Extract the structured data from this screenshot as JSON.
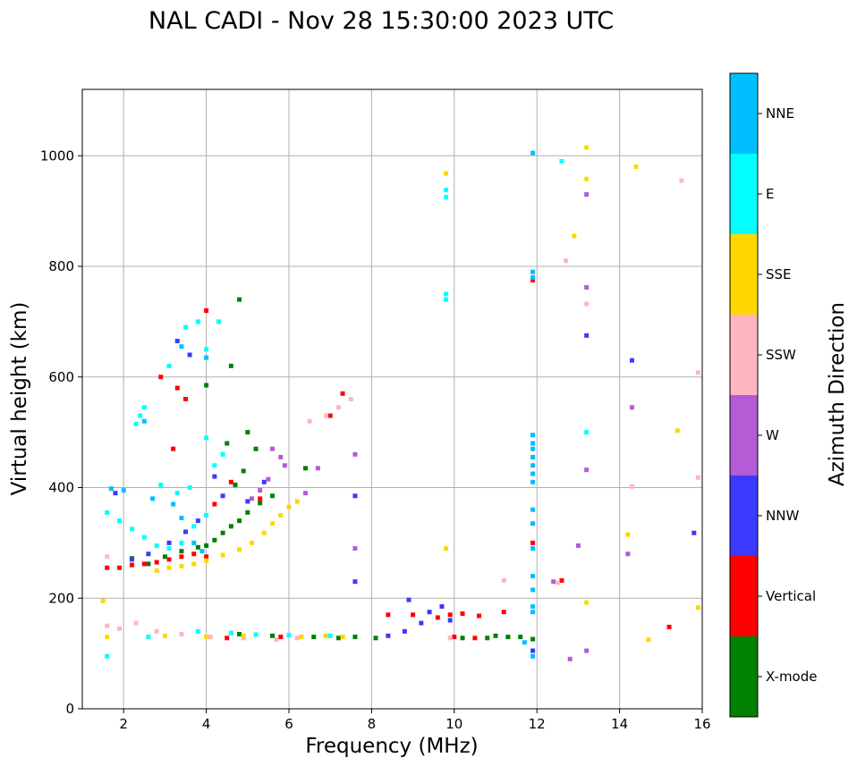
{
  "chart_data": {
    "type": "scatter",
    "title": "NAL CADI - Nov 28 15:30:00 2023 UTC",
    "xlabel": "Frequency (MHz)",
    "ylabel": "Virtual height (km)",
    "xlim": [
      1,
      16
    ],
    "ylim": [
      0,
      1120
    ],
    "xticks": [
      2,
      4,
      6,
      8,
      10,
      12,
      14,
      16
    ],
    "yticks": [
      0,
      200,
      400,
      600,
      800,
      1000
    ],
    "grid": true,
    "colorbar": {
      "label": "Azimuth Direction",
      "categories": [
        {
          "name": "X-mode",
          "color": "#008000"
        },
        {
          "name": "Vertical",
          "color": "#ff0000"
        },
        {
          "name": "NNW",
          "color": "#3a3aff"
        },
        {
          "name": "W",
          "color": "#b45bd6"
        },
        {
          "name": "SSW",
          "color": "#ffb6c1"
        },
        {
          "name": "SSE",
          "color": "#ffd700"
        },
        {
          "name": "E",
          "color": "#00ffff"
        },
        {
          "name": "NNE",
          "color": "#00bfff"
        }
      ]
    },
    "series": [
      {
        "name": "X-mode",
        "points": [
          [
            2.2,
            272
          ],
          [
            2.6,
            262
          ],
          [
            3.0,
            275
          ],
          [
            3.4,
            285
          ],
          [
            3.8,
            292
          ],
          [
            4.0,
            295
          ],
          [
            4.2,
            305
          ],
          [
            4.4,
            318
          ],
          [
            4.6,
            330
          ],
          [
            4.8,
            340
          ],
          [
            5.0,
            355
          ],
          [
            5.3,
            372
          ],
          [
            5.6,
            385
          ],
          [
            4.0,
            585
          ],
          [
            4.8,
            740
          ],
          [
            4.6,
            620
          ],
          [
            4.5,
            480
          ],
          [
            5.0,
            500
          ],
          [
            5.2,
            470
          ],
          [
            4.9,
            430
          ],
          [
            4.7,
            405
          ],
          [
            6.4,
            435
          ],
          [
            4.8,
            135
          ],
          [
            5.6,
            132
          ],
          [
            6.6,
            130
          ],
          [
            7.2,
            128
          ],
          [
            7.6,
            130
          ],
          [
            8.1,
            128
          ],
          [
            10.2,
            128
          ],
          [
            10.8,
            128
          ],
          [
            11.0,
            132
          ],
          [
            11.3,
            130
          ],
          [
            11.6,
            130
          ],
          [
            11.9,
            126
          ]
        ]
      },
      {
        "name": "Vertical",
        "points": [
          [
            1.6,
            255
          ],
          [
            1.9,
            255
          ],
          [
            2.2,
            260
          ],
          [
            2.5,
            262
          ],
          [
            2.8,
            265
          ],
          [
            3.1,
            270
          ],
          [
            3.4,
            275
          ],
          [
            3.7,
            280
          ],
          [
            4.0,
            275
          ],
          [
            2.9,
            600
          ],
          [
            3.3,
            580
          ],
          [
            3.5,
            560
          ],
          [
            4.0,
            720
          ],
          [
            3.2,
            470
          ],
          [
            4.6,
            410
          ],
          [
            4.2,
            370
          ],
          [
            5.3,
            380
          ],
          [
            7.0,
            530
          ],
          [
            7.3,
            570
          ],
          [
            9.0,
            170
          ],
          [
            9.6,
            165
          ],
          [
            9.9,
            170
          ],
          [
            10.2,
            172
          ],
          [
            10.6,
            168
          ],
          [
            11.2,
            175
          ],
          [
            8.4,
            170
          ],
          [
            11.9,
            300
          ],
          [
            11.9,
            775
          ],
          [
            12.6,
            232
          ],
          [
            15.2,
            148
          ],
          [
            10.0,
            130
          ],
          [
            10.5,
            128
          ],
          [
            4.5,
            128
          ],
          [
            5.8,
            130
          ]
        ]
      },
      {
        "name": "NNW",
        "points": [
          [
            1.8,
            390
          ],
          [
            2.2,
            270
          ],
          [
            2.6,
            280
          ],
          [
            3.1,
            300
          ],
          [
            3.5,
            320
          ],
          [
            3.8,
            340
          ],
          [
            4.2,
            420
          ],
          [
            4.4,
            385
          ],
          [
            5.0,
            375
          ],
          [
            5.4,
            410
          ],
          [
            3.3,
            665
          ],
          [
            3.6,
            640
          ],
          [
            7.6,
            385
          ],
          [
            7.6,
            230
          ],
          [
            8.9,
            197
          ],
          [
            9.4,
            175
          ],
          [
            9.7,
            185
          ],
          [
            9.9,
            160
          ],
          [
            9.2,
            155
          ],
          [
            8.8,
            140
          ],
          [
            8.4,
            132
          ],
          [
            13.2,
            675
          ],
          [
            14.3,
            630
          ],
          [
            15.8,
            318
          ],
          [
            11.9,
            105
          ]
        ]
      },
      {
        "name": "W",
        "points": [
          [
            5.6,
            470
          ],
          [
            5.8,
            455
          ],
          [
            5.9,
            440
          ],
          [
            5.5,
            415
          ],
          [
            5.3,
            395
          ],
          [
            5.1,
            380
          ],
          [
            6.4,
            390
          ],
          [
            6.7,
            435
          ],
          [
            7.6,
            460
          ],
          [
            7.6,
            290
          ],
          [
            12.8,
            90
          ],
          [
            13.0,
            295
          ],
          [
            13.2,
            432
          ],
          [
            13.2,
            930
          ],
          [
            13.2,
            762
          ],
          [
            13.2,
            105
          ],
          [
            14.2,
            280
          ],
          [
            14.3,
            545
          ],
          [
            12.4,
            230
          ]
        ]
      },
      {
        "name": "SSW",
        "points": [
          [
            1.6,
            150
          ],
          [
            1.9,
            145
          ],
          [
            2.3,
            155
          ],
          [
            2.8,
            140
          ],
          [
            3.4,
            135
          ],
          [
            4.1,
            130
          ],
          [
            4.9,
            128
          ],
          [
            5.7,
            125
          ],
          [
            6.2,
            128
          ],
          [
            6.5,
            520
          ],
          [
            6.9,
            530
          ],
          [
            7.2,
            545
          ],
          [
            7.5,
            560
          ],
          [
            9.9,
            128
          ],
          [
            11.2,
            232
          ],
          [
            12.5,
            228
          ],
          [
            12.7,
            810
          ],
          [
            13.2,
            732
          ],
          [
            14.3,
            402
          ],
          [
            15.5,
            955
          ],
          [
            15.9,
            608
          ],
          [
            15.9,
            418
          ],
          [
            1.6,
            275
          ]
        ]
      },
      {
        "name": "SSE",
        "points": [
          [
            2.8,
            250
          ],
          [
            3.1,
            255
          ],
          [
            3.4,
            258
          ],
          [
            3.7,
            262
          ],
          [
            4.0,
            268
          ],
          [
            4.4,
            278
          ],
          [
            4.8,
            288
          ],
          [
            5.1,
            300
          ],
          [
            5.4,
            318
          ],
          [
            5.6,
            335
          ],
          [
            5.8,
            350
          ],
          [
            6.0,
            365
          ],
          [
            6.2,
            375
          ],
          [
            1.5,
            195
          ],
          [
            1.6,
            130
          ],
          [
            3.0,
            132
          ],
          [
            4.0,
            130
          ],
          [
            4.9,
            132
          ],
          [
            6.3,
            130
          ],
          [
            6.9,
            132
          ],
          [
            7.3,
            130
          ],
          [
            9.8,
            290
          ],
          [
            9.8,
            968
          ],
          [
            12.9,
            855
          ],
          [
            13.2,
            958
          ],
          [
            13.2,
            1015
          ],
          [
            13.2,
            192
          ],
          [
            14.2,
            315
          ],
          [
            14.4,
            980
          ],
          [
            14.7,
            125
          ],
          [
            15.4,
            503
          ],
          [
            15.9,
            183
          ]
        ]
      },
      {
        "name": "E",
        "points": [
          [
            1.6,
            355
          ],
          [
            1.9,
            340
          ],
          [
            2.2,
            325
          ],
          [
            2.5,
            310
          ],
          [
            2.8,
            295
          ],
          [
            3.1,
            290
          ],
          [
            3.4,
            300
          ],
          [
            3.7,
            330
          ],
          [
            4.0,
            350
          ],
          [
            2.4,
            530
          ],
          [
            2.5,
            545
          ],
          [
            2.3,
            515
          ],
          [
            2.9,
            405
          ],
          [
            3.3,
            390
          ],
          [
            3.6,
            400
          ],
          [
            4.2,
            440
          ],
          [
            4.4,
            460
          ],
          [
            4.0,
            490
          ],
          [
            3.1,
            620
          ],
          [
            3.5,
            690
          ],
          [
            3.8,
            700
          ],
          [
            4.0,
            650
          ],
          [
            4.3,
            700
          ],
          [
            1.6,
            95
          ],
          [
            2.6,
            130
          ],
          [
            3.8,
            140
          ],
          [
            4.6,
            137
          ],
          [
            5.2,
            134
          ],
          [
            6.0,
            133
          ],
          [
            7.0,
            132
          ],
          [
            9.8,
            938
          ],
          [
            9.8,
            925
          ],
          [
            9.8,
            750
          ],
          [
            9.8,
            740
          ],
          [
            12.6,
            990
          ],
          [
            13.2,
            500
          ]
        ]
      },
      {
        "name": "NNE",
        "points": [
          [
            1.7,
            398
          ],
          [
            2.0,
            395
          ],
          [
            2.7,
            380
          ],
          [
            3.2,
            370
          ],
          [
            3.4,
            345
          ],
          [
            3.7,
            300
          ],
          [
            3.9,
            285
          ],
          [
            4.0,
            635
          ],
          [
            3.4,
            655
          ],
          [
            2.5,
            520
          ],
          [
            11.9,
            1005
          ],
          [
            11.9,
            790
          ],
          [
            11.9,
            780
          ],
          [
            11.9,
            495
          ],
          [
            11.9,
            480
          ],
          [
            11.9,
            470
          ],
          [
            11.9,
            455
          ],
          [
            11.9,
            440
          ],
          [
            11.9,
            425
          ],
          [
            11.9,
            410
          ],
          [
            11.9,
            360
          ],
          [
            11.9,
            335
          ],
          [
            11.9,
            290
          ],
          [
            11.9,
            240
          ],
          [
            11.9,
            215
          ],
          [
            11.9,
            185
          ],
          [
            11.9,
            175
          ],
          [
            11.9,
            95
          ],
          [
            11.7,
            120
          ]
        ]
      }
    ]
  }
}
